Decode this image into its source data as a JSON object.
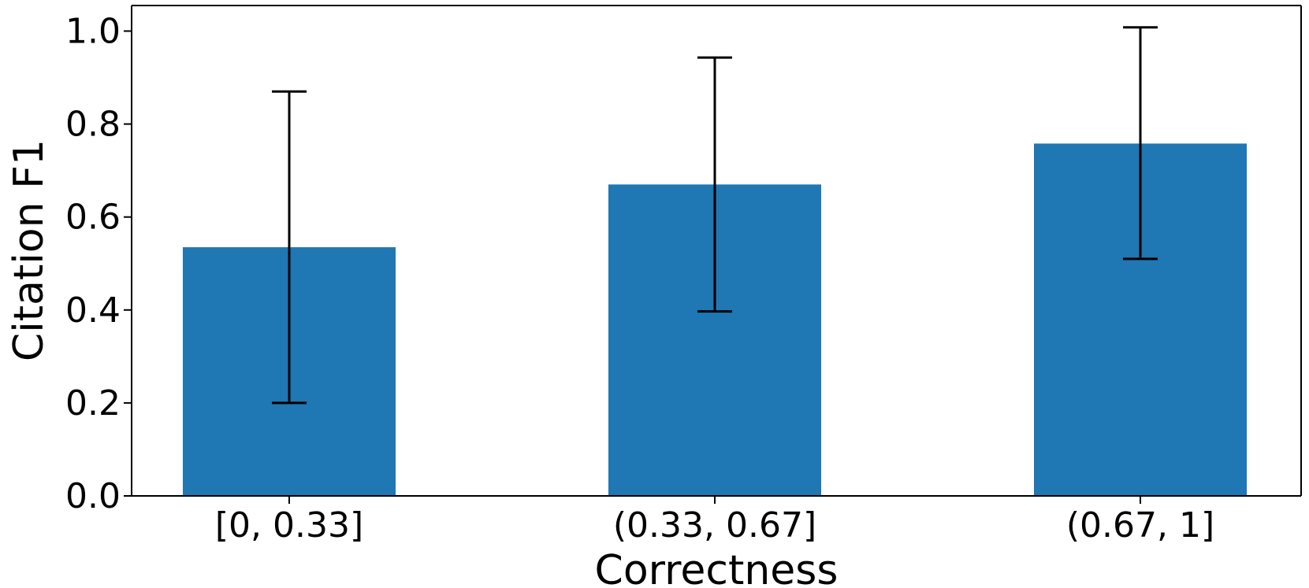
{
  "chart_data": {
    "type": "bar",
    "title": "",
    "xlabel": "Correctness",
    "ylabel": "Citation F1",
    "categories": [
      "[0, 0.33]",
      "(0.33, 0.67]",
      "(0.67, 1]"
    ],
    "values": [
      0.535,
      0.67,
      0.758
    ],
    "error_low": [
      0.2,
      0.397,
      0.51
    ],
    "error_high": [
      0.87,
      0.943,
      1.008
    ],
    "ylim": [
      0.0,
      1.055
    ],
    "yticks": [
      0.0,
      0.2,
      0.4,
      0.6,
      0.8,
      1.0
    ],
    "ytick_labels": [
      "0.0",
      "0.2",
      "0.4",
      "0.6",
      "0.8",
      "1.0"
    ],
    "grid": false,
    "bar_color": "#1f77b4",
    "error_color": "#000000"
  }
}
